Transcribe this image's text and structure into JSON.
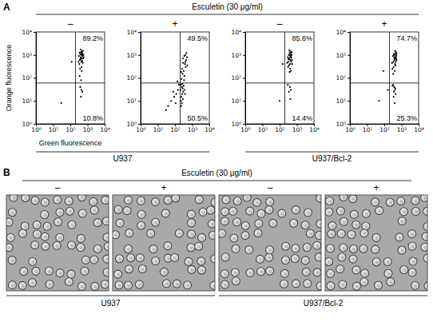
{
  "panel_a": {
    "letter": "A",
    "header": "Esculetin (30 μg/ml)",
    "groups": [
      "U937",
      "U937/Bcl-2"
    ]
  },
  "panel_b": {
    "letter": "B",
    "header": "Esculetin (30 μg/ml)",
    "treatments": [
      "–",
      "+",
      "–",
      "+"
    ],
    "groups": [
      "U937",
      "U937/Bcl-2"
    ]
  },
  "chart_data": [
    {
      "type": "scatter",
      "title": "–",
      "x_label": "Green fluorescence",
      "y_label": "Orange fluorescence",
      "log": true,
      "color": "#000000",
      "xlim": [
        1,
        10000
      ],
      "ylim": [
        1,
        10000
      ],
      "xticks": [
        {
          "value": 1,
          "label": "10⁰"
        },
        {
          "value": 10,
          "label": "10¹"
        },
        {
          "value": 100,
          "label": "10²"
        },
        {
          "value": 1000,
          "label": "10³"
        },
        {
          "value": 10000,
          "label": "10⁴"
        }
      ],
      "yticks": [
        {
          "value": 1,
          "label": "10⁰"
        },
        {
          "value": 10,
          "label": "10¹"
        },
        {
          "value": 100,
          "label": "10²"
        },
        {
          "value": 1000,
          "label": "10³"
        },
        {
          "value": 10000,
          "label": "10⁴"
        }
      ],
      "gate": {
        "x": 200,
        "y": 60
      },
      "data_labels": true,
      "quadrants": {
        "values": [
          89.2,
          10.8
        ],
        "value_labels": [
          "89.2%",
          "10.8%"
        ]
      },
      "x": [
        320,
        380,
        420,
        460,
        500,
        540,
        360,
        400,
        440,
        480,
        520,
        560,
        340,
        390,
        430,
        470,
        510,
        600,
        450,
        410,
        370,
        490,
        530,
        350,
        420,
        460,
        300,
        580,
        380,
        450,
        500,
        420,
        420,
        350,
        120,
        30
      ],
      "values": [
        900,
        1100,
        1300,
        700,
        1000,
        1500,
        600,
        800,
        500,
        1200,
        900,
        700,
        400,
        650,
        1000,
        1400,
        1100,
        800,
        300,
        1700,
        250,
        550,
        450,
        1250,
        750,
        200,
        500,
        1000,
        40,
        30,
        25,
        15,
        80,
        120,
        500,
        8
      ]
    },
    {
      "type": "scatter",
      "title": "+",
      "log": true,
      "color": "#000000",
      "xlim": [
        1,
        10000
      ],
      "ylim": [
        1,
        10000
      ],
      "xticks": [
        {
          "value": 1,
          "label": "10⁰"
        },
        {
          "value": 10,
          "label": "10¹"
        },
        {
          "value": 100,
          "label": "10²"
        },
        {
          "value": 1000,
          "label": "10³"
        },
        {
          "value": 10000,
          "label": "10⁴"
        }
      ],
      "yticks": [
        {
          "value": 1,
          "label": "10⁰"
        },
        {
          "value": 10,
          "label": "10¹"
        },
        {
          "value": 100,
          "label": "10²"
        },
        {
          "value": 1000,
          "label": "10³"
        },
        {
          "value": 10000,
          "label": "10⁴"
        }
      ],
      "gate": {
        "x": 200,
        "y": 60
      },
      "data_labels": true,
      "quadrants": {
        "values": [
          49.5,
          50.5
        ],
        "value_labels": [
          "49.5%",
          "50.5%"
        ]
      },
      "x": [
        300,
        350,
        400,
        450,
        500,
        380,
        420,
        260,
        320,
        280,
        460,
        360,
        240,
        400,
        520,
        340,
        300,
        230,
        220,
        250,
        280,
        300,
        260,
        240,
        320,
        350,
        230,
        210,
        270,
        290,
        380,
        250,
        230,
        150,
        120,
        90,
        60,
        40,
        170,
        110,
        80,
        30,
        140
      ],
      "values": [
        700,
        900,
        1000,
        600,
        800,
        400,
        300,
        250,
        200,
        150,
        1200,
        120,
        90,
        500,
        350,
        80,
        450,
        180,
        50,
        40,
        35,
        25,
        20,
        15,
        45,
        30,
        10,
        30,
        55,
        12,
        20,
        8,
        6,
        30,
        20,
        15,
        10,
        6,
        50,
        8,
        25,
        4,
        70
      ]
    },
    {
      "type": "scatter",
      "title": "–",
      "log": true,
      "color": "#000000",
      "xlim": [
        1,
        10000
      ],
      "ylim": [
        1,
        10000
      ],
      "xticks": [
        {
          "value": 1,
          "label": "10⁰"
        },
        {
          "value": 10,
          "label": "10¹"
        },
        {
          "value": 100,
          "label": "10²"
        },
        {
          "value": 1000,
          "label": "10³"
        },
        {
          "value": 10000,
          "label": "10⁴"
        }
      ],
      "yticks": [
        {
          "value": 1,
          "label": "10⁰"
        },
        {
          "value": 10,
          "label": "10¹"
        },
        {
          "value": 100,
          "label": "10²"
        },
        {
          "value": 1000,
          "label": "10³"
        },
        {
          "value": 10000,
          "label": "10⁴"
        }
      ],
      "gate": {
        "x": 200,
        "y": 60
      },
      "data_labels": true,
      "quadrants": {
        "values": [
          85.6,
          14.4
        ],
        "value_labels": [
          "85.6%",
          "14.4%"
        ]
      },
      "x": [
        300,
        340,
        380,
        420,
        460,
        500,
        320,
        360,
        400,
        440,
        480,
        520,
        350,
        390,
        430,
        470,
        310,
        410,
        450,
        370,
        490,
        330,
        430,
        280,
        540,
        380,
        400,
        350,
        450,
        300,
        420,
        150,
        100
      ],
      "values": [
        800,
        1000,
        1200,
        600,
        900,
        1300,
        500,
        700,
        400,
        1100,
        750,
        600,
        350,
        950,
        1400,
        500,
        300,
        250,
        200,
        1600,
        1000,
        650,
        800,
        450,
        400,
        180,
        40,
        25,
        30,
        50,
        12,
        400,
        10
      ]
    },
    {
      "type": "scatter",
      "title": "+",
      "log": true,
      "color": "#000000",
      "xlim": [
        1,
        10000
      ],
      "ylim": [
        1,
        10000
      ],
      "xticks": [
        {
          "value": 1,
          "label": "10⁰"
        },
        {
          "value": 10,
          "label": "10¹"
        },
        {
          "value": 100,
          "label": "10²"
        },
        {
          "value": 1000,
          "label": "10³"
        },
        {
          "value": 10000,
          "label": "10⁴"
        }
      ],
      "yticks": [
        {
          "value": 1,
          "label": "10⁰"
        },
        {
          "value": 10,
          "label": "10¹"
        },
        {
          "value": 100,
          "label": "10²"
        },
        {
          "value": 1000,
          "label": "10³"
        },
        {
          "value": 10000,
          "label": "10⁴"
        }
      ],
      "gate": {
        "x": 200,
        "y": 60
      },
      "data_labels": true,
      "quadrants": {
        "values": [
          74.7,
          25.3
        ],
        "value_labels": [
          "74.7%",
          "25.3%"
        ]
      },
      "x": [
        320,
        360,
        400,
        440,
        480,
        520,
        340,
        380,
        420,
        460,
        500,
        350,
        390,
        430,
        470,
        300,
        410,
        450,
        370,
        490,
        330,
        440,
        280,
        520,
        330,
        380,
        420,
        460,
        300,
        350,
        400,
        440,
        360,
        160,
        90,
        50
      ],
      "values": [
        900,
        1100,
        700,
        1000,
        1300,
        600,
        500,
        800,
        400,
        1200,
        900,
        300,
        600,
        1500,
        500,
        250,
        200,
        350,
        1000,
        700,
        150,
        800,
        450,
        1100,
        50,
        40,
        30,
        20,
        45,
        15,
        8,
        35,
        25,
        30,
        200,
        10
      ]
    }
  ]
}
